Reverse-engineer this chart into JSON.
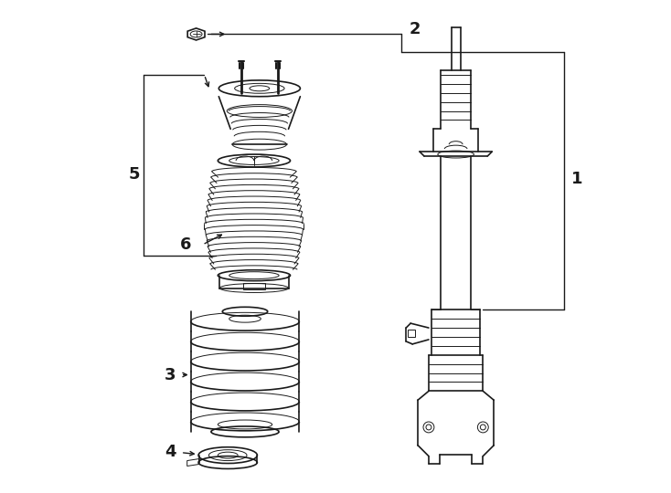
{
  "background_color": "#ffffff",
  "line_color": "#1a1a1a",
  "fig_width": 7.34,
  "fig_height": 5.4,
  "dpi": 100,
  "label_fontsize": 13,
  "label_fontweight": "bold"
}
